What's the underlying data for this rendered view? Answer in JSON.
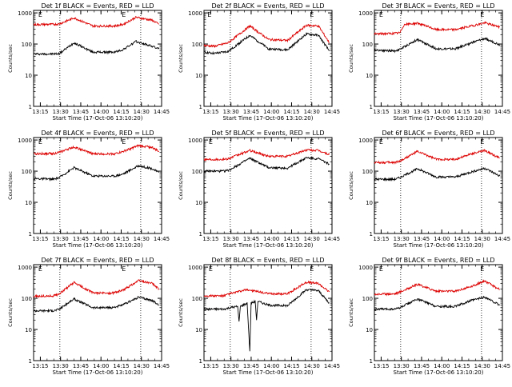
{
  "chart_data": [
    {
      "type": "line",
      "title": "Det 1f BLACK = Events, RED = LLD",
      "xlabel": "Start Time (17-Oct-06 13:10:20)",
      "ylabel": "Counts/sec",
      "x_ticks": [
        "13:15",
        "13:30",
        "13:45",
        "14:00",
        "14:15",
        "14:30",
        "14:45"
      ],
      "x_range_min": [
        0,
        95
      ],
      "y_ticks": [
        "1",
        "10",
        "100",
        "1000"
      ],
      "y_scale": "log",
      "ylim": [
        1,
        1200
      ],
      "markers": [
        {
          "label": "E",
          "x_min": 5
        },
        {
          "label": "E",
          "x_min": 67
        }
      ],
      "dotted_lines_x_min": [
        19.5,
        79.5
      ],
      "series": [
        {
          "color": "#000000",
          "points": [
            [
              0,
              48
            ],
            [
              15,
              48
            ],
            [
              19,
              49
            ],
            [
              30,
              110
            ],
            [
              44,
              55
            ],
            [
              60,
              55
            ],
            [
              66,
              65
            ],
            [
              76,
              120
            ],
            [
              88,
              85
            ],
            [
              93,
              70
            ]
          ]
        },
        {
          "color": "#dd0000",
          "points": [
            [
              0,
              420
            ],
            [
              15,
              430
            ],
            [
              19,
              440
            ],
            [
              30,
              690
            ],
            [
              44,
              380
            ],
            [
              60,
              380
            ],
            [
              66,
              420
            ],
            [
              76,
              720
            ],
            [
              88,
              580
            ],
            [
              93,
              430
            ]
          ]
        }
      ]
    },
    {
      "type": "line",
      "title": "Det 2f BLACK = Events, RED = LLD",
      "xlabel": "Start Time (17-Oct-06 13:10:20)",
      "ylabel": "Counts/sec",
      "x_ticks": [
        "13:15",
        "13:30",
        "13:45",
        "14:00",
        "14:15",
        "14:30",
        "14:45"
      ],
      "x_range_min": [
        0,
        95
      ],
      "y_ticks": [
        "1",
        "10",
        "100",
        "1000"
      ],
      "y_scale": "log",
      "ylim": [
        1,
        1200
      ],
      "markers": [
        {
          "label": "E",
          "x_min": 4
        },
        {
          "label": "E",
          "x_min": 80
        }
      ],
      "dotted_lines_x_min": [
        19.5,
        79.5
      ],
      "series": [
        {
          "color": "#000000",
          "points": [
            [
              0,
              55
            ],
            [
              8,
              50
            ],
            [
              18,
              58
            ],
            [
              34,
              190
            ],
            [
              48,
              70
            ],
            [
              62,
              65
            ],
            [
              76,
              210
            ],
            [
              85,
              190
            ],
            [
              93,
              60
            ]
          ]
        },
        {
          "color": "#dd0000",
          "points": [
            [
              0,
              90
            ],
            [
              8,
              85
            ],
            [
              18,
              110
            ],
            [
              34,
              380
            ],
            [
              48,
              140
            ],
            [
              62,
              130
            ],
            [
              76,
              400
            ],
            [
              85,
              380
            ],
            [
              93,
              110
            ]
          ]
        }
      ]
    },
    {
      "type": "line",
      "title": "Det 3f BLACK = Events, RED = LLD",
      "xlabel": "Start Time (17-Oct-06 13:10:20)",
      "ylabel": "Counts/sec",
      "x_ticks": [
        "13:15",
        "13:30",
        "13:45",
        "14:00",
        "14:15",
        "14:30",
        "14:45"
      ],
      "x_range_min": [
        0,
        95
      ],
      "y_ticks": [
        "1",
        "10",
        "100",
        "1000"
      ],
      "y_scale": "log",
      "ylim": [
        1,
        1200
      ],
      "markers": [
        {
          "label": "E",
          "x_min": 5
        },
        {
          "label": "E",
          "x_min": 80
        }
      ],
      "dotted_lines_x_min": [
        19.5,
        79.5
      ],
      "series": [
        {
          "color": "#000000",
          "points": [
            [
              0,
              65
            ],
            [
              15,
              60
            ],
            [
              19,
              68
            ],
            [
              32,
              140
            ],
            [
              46,
              70
            ],
            [
              60,
              70
            ],
            [
              72,
              110
            ],
            [
              82,
              150
            ],
            [
              93,
              95
            ]
          ]
        },
        {
          "color": "#dd0000",
          "points": [
            [
              0,
              210
            ],
            [
              15,
              220
            ],
            [
              19,
              230
            ],
            [
              22,
              420
            ],
            [
              32,
              470
            ],
            [
              46,
              290
            ],
            [
              60,
              290
            ],
            [
              72,
              380
            ],
            [
              82,
              480
            ],
            [
              93,
              350
            ]
          ]
        }
      ]
    },
    {
      "type": "line",
      "title": "Det 4f BLACK = Events, RED = LLD",
      "xlabel": "Start Time (17-Oct-06 13:10:20)",
      "ylabel": "Counts/sec",
      "x_ticks": [
        "13:15",
        "13:30",
        "13:45",
        "14:00",
        "14:15",
        "14:30",
        "14:45"
      ],
      "x_range_min": [
        0,
        95
      ],
      "y_ticks": [
        "1",
        "10",
        "100",
        "1000"
      ],
      "y_scale": "log",
      "ylim": [
        1,
        1200
      ],
      "markers": [
        {
          "label": "E",
          "x_min": 5
        },
        {
          "label": "E",
          "x_min": 67
        }
      ],
      "dotted_lines_x_min": [
        19.5,
        79.5
      ],
      "series": [
        {
          "color": "#000000",
          "points": [
            [
              0,
              58
            ],
            [
              15,
              55
            ],
            [
              19,
              62
            ],
            [
              30,
              130
            ],
            [
              44,
              70
            ],
            [
              60,
              70
            ],
            [
              66,
              80
            ],
            [
              78,
              150
            ],
            [
              88,
              120
            ],
            [
              93,
              90
            ]
          ]
        },
        {
          "color": "#dd0000",
          "points": [
            [
              0,
              360
            ],
            [
              15,
              370
            ],
            [
              19,
              400
            ],
            [
              30,
              600
            ],
            [
              44,
              360
            ],
            [
              60,
              360
            ],
            [
              66,
              420
            ],
            [
              78,
              660
            ],
            [
              88,
              580
            ],
            [
              93,
              430
            ]
          ]
        }
      ]
    },
    {
      "type": "line",
      "title": "Det 5f BLACK = Events, RED = LLD",
      "xlabel": "Start Time (17-Oct-06 13:10:20)",
      "ylabel": "Counts/sec",
      "x_ticks": [
        "13:15",
        "13:30",
        "13:45",
        "14:00",
        "14:15",
        "14:30",
        "14:45"
      ],
      "x_range_min": [
        0,
        95
      ],
      "y_ticks": [
        "1",
        "10",
        "100",
        "1000"
      ],
      "y_scale": "log",
      "ylim": [
        1,
        1200
      ],
      "markers": [
        {
          "label": "E",
          "x_min": 5
        },
        {
          "label": "E",
          "x_min": 80
        }
      ],
      "dotted_lines_x_min": [
        19.5,
        79.5
      ],
      "series": [
        {
          "color": "#000000",
          "points": [
            [
              0,
              100
            ],
            [
              15,
              100
            ],
            [
              19,
              110
            ],
            [
              34,
              260
            ],
            [
              48,
              130
            ],
            [
              62,
              125
            ],
            [
              76,
              270
            ],
            [
              85,
              250
            ],
            [
              93,
              170
            ]
          ]
        },
        {
          "color": "#dd0000",
          "points": [
            [
              0,
              240
            ],
            [
              15,
              240
            ],
            [
              19,
              260
            ],
            [
              34,
              460
            ],
            [
              48,
              300
            ],
            [
              62,
              300
            ],
            [
              76,
              480
            ],
            [
              85,
              460
            ],
            [
              93,
              340
            ]
          ]
        }
      ]
    },
    {
      "type": "line",
      "title": "Det 6f BLACK = Events, RED = LLD",
      "xlabel": "Start Time (17-Oct-06 13:10:20)",
      "ylabel": "Counts/sec",
      "x_ticks": [
        "13:15",
        "13:30",
        "13:45",
        "14:00",
        "14:15",
        "14:30",
        "14:45"
      ],
      "x_range_min": [
        0,
        95
      ],
      "y_ticks": [
        "1",
        "10",
        "100",
        "1000"
      ],
      "y_scale": "log",
      "ylim": [
        1,
        1200
      ],
      "markers": [
        {
          "label": "E",
          "x_min": 5
        },
        {
          "label": "E",
          "x_min": 80
        }
      ],
      "dotted_lines_x_min": [
        19.5,
        79.5
      ],
      "series": [
        {
          "color": "#000000",
          "points": [
            [
              0,
              55
            ],
            [
              15,
              55
            ],
            [
              19,
              62
            ],
            [
              32,
              120
            ],
            [
              46,
              65
            ],
            [
              60,
              65
            ],
            [
              72,
              95
            ],
            [
              82,
              125
            ],
            [
              93,
              70
            ]
          ]
        },
        {
          "color": "#dd0000",
          "points": [
            [
              0,
              190
            ],
            [
              15,
              190
            ],
            [
              19,
              210
            ],
            [
              32,
              430
            ],
            [
              46,
              240
            ],
            [
              60,
              240
            ],
            [
              72,
              360
            ],
            [
              82,
              460
            ],
            [
              93,
              260
            ]
          ]
        }
      ]
    },
    {
      "type": "line",
      "title": "Det 7f BLACK = Events, RED = LLD",
      "xlabel": "Start Time (17-Oct-06 13:10:20)",
      "ylabel": "Counts/sec",
      "x_ticks": [
        "13:15",
        "13:30",
        "13:45",
        "14:00",
        "14:15",
        "14:30",
        "14:45"
      ],
      "x_range_min": [
        0,
        95
      ],
      "y_ticks": [
        "1",
        "10",
        "100",
        "1000"
      ],
      "y_scale": "log",
      "ylim": [
        1,
        1200
      ],
      "markers": [
        {
          "label": "E",
          "x_min": 5
        },
        {
          "label": "E",
          "x_min": 67
        }
      ],
      "dotted_lines_x_min": [
        19.5,
        79.5
      ],
      "series": [
        {
          "color": "#000000",
          "points": [
            [
              0,
              40
            ],
            [
              15,
              40
            ],
            [
              19,
              45
            ],
            [
              30,
              95
            ],
            [
              44,
              50
            ],
            [
              58,
              50
            ],
            [
              66,
              60
            ],
            [
              78,
              110
            ],
            [
              88,
              85
            ],
            [
              93,
              60
            ]
          ]
        },
        {
          "color": "#dd0000",
          "points": [
            [
              0,
              115
            ],
            [
              15,
              120
            ],
            [
              19,
              140
            ],
            [
              30,
              320
            ],
            [
              44,
              150
            ],
            [
              58,
              145
            ],
            [
              66,
              180
            ],
            [
              78,
              370
            ],
            [
              88,
              300
            ],
            [
              93,
              200
            ]
          ]
        }
      ]
    },
    {
      "type": "line",
      "title": "Det 8f BLACK = Events, RED = LLD",
      "xlabel": "Start Time (17-Oct-06 13:10:20)",
      "ylabel": "Counts/sec",
      "x_ticks": [
        "13:15",
        "13:30",
        "13:45",
        "14:00",
        "14:15",
        "14:30",
        "14:45"
      ],
      "x_range_min": [
        0,
        95
      ],
      "y_ticks": [
        "1",
        "10",
        "100",
        "1000"
      ],
      "y_scale": "log",
      "ylim": [
        1,
        1200
      ],
      "markers": [
        {
          "label": "E",
          "x_min": 5
        },
        {
          "label": "E",
          "x_min": 80
        }
      ],
      "dotted_lines_x_min": [
        19.5,
        79.5
      ],
      "series": [
        {
          "color": "#000000",
          "points": [
            [
              0,
              45
            ],
            [
              15,
              45
            ],
            [
              19,
              50
            ],
            [
              25,
              55
            ],
            [
              26,
              18
            ],
            [
              27,
              55
            ],
            [
              32,
              70
            ],
            [
              34,
              2
            ],
            [
              35,
              70
            ],
            [
              38,
              80
            ],
            [
              39,
              20
            ],
            [
              40,
              80
            ],
            [
              48,
              60
            ],
            [
              62,
              58
            ],
            [
              76,
              190
            ],
            [
              85,
              175
            ],
            [
              93,
              70
            ]
          ]
        },
        {
          "color": "#dd0000",
          "points": [
            [
              0,
              120
            ],
            [
              15,
              120
            ],
            [
              19,
              140
            ],
            [
              32,
              190
            ],
            [
              48,
              140
            ],
            [
              62,
              140
            ],
            [
              76,
              330
            ],
            [
              85,
              300
            ],
            [
              93,
              160
            ]
          ]
        }
      ]
    },
    {
      "type": "line",
      "title": "Det 9f BLACK = Events, RED = LLD",
      "xlabel": "Start Time (17-Oct-06 13:10:20)",
      "ylabel": "Counts/sec",
      "x_ticks": [
        "13:15",
        "13:30",
        "13:45",
        "14:00",
        "14:15",
        "14:30",
        "14:45"
      ],
      "x_range_min": [
        0,
        95
      ],
      "y_ticks": [
        "1",
        "10",
        "100",
        "1000"
      ],
      "y_scale": "log",
      "ylim": [
        1,
        1200
      ],
      "markers": [
        {
          "label": "E",
          "x_min": 5
        },
        {
          "label": "E",
          "x_min": 80
        }
      ],
      "dotted_lines_x_min": [
        19.5,
        79.5
      ],
      "series": [
        {
          "color": "#000000",
          "points": [
            [
              0,
              45
            ],
            [
              15,
              45
            ],
            [
              19,
              50
            ],
            [
              32,
              95
            ],
            [
              46,
              55
            ],
            [
              60,
              55
            ],
            [
              72,
              85
            ],
            [
              82,
              110
            ],
            [
              93,
              60
            ]
          ]
        },
        {
          "color": "#dd0000",
          "points": [
            [
              0,
              135
            ],
            [
              15,
              140
            ],
            [
              19,
              160
            ],
            [
              32,
              280
            ],
            [
              46,
              170
            ],
            [
              60,
              170
            ],
            [
              72,
              240
            ],
            [
              82,
              360
            ],
            [
              93,
              190
            ]
          ]
        }
      ]
    }
  ]
}
